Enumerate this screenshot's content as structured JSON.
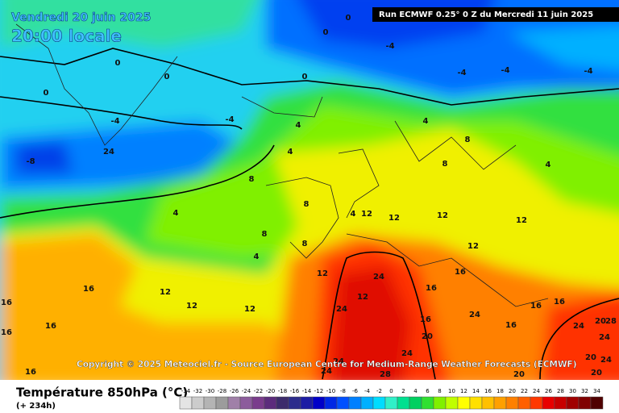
{
  "header": {
    "date": "Vendredi 20 juin 2025",
    "time": "20:00 locale",
    "run": "Run ECMWF 0.25° 0 Z du Mercredi 11 juin 2025"
  },
  "copyright": "Copyright © 2025 Meteociel.fr - Source European Centre for Medium-Range Weather Forecasts (ECMWF)",
  "footer": {
    "title": "Température 850hPa (°C)",
    "lead": "(+ 234h)"
  },
  "legend": {
    "labels": [
      -34,
      -32,
      -30,
      -28,
      -26,
      -24,
      -22,
      -20,
      -18,
      -16,
      -14,
      -12,
      -10,
      -8,
      -6,
      -4,
      -2,
      0,
      2,
      4,
      6,
      8,
      10,
      12,
      14,
      16,
      18,
      20,
      22,
      24,
      26,
      28,
      30,
      32,
      34
    ],
    "colors": [
      "#e4e4e4",
      "#cccccc",
      "#b4b4b4",
      "#9c9c9c",
      "#a080a8",
      "#8c5c9c",
      "#7a3c8c",
      "#5c2c7c",
      "#3c2c6c",
      "#2c2c8c",
      "#1c1ca4",
      "#0000c8",
      "#0028e4",
      "#0050ff",
      "#0080ff",
      "#00b0ff",
      "#00dcff",
      "#30f0c8",
      "#00e090",
      "#00d060",
      "#30e030",
      "#80f000",
      "#c0ff00",
      "#ffff00",
      "#ffe000",
      "#ffc000",
      "#ffa000",
      "#ff8000",
      "#ff6000",
      "#ff3800",
      "#e80000",
      "#c80000",
      "#a00000",
      "#800000",
      "#500000"
    ]
  },
  "contour_labels": [
    0,
    0,
    0,
    0,
    0,
    0,
    -4,
    -4,
    -4,
    -4,
    -4,
    -4,
    -8,
    4,
    4,
    4,
    8,
    8,
    4,
    8,
    8,
    4,
    8,
    4,
    4,
    12,
    12,
    12,
    12,
    8,
    12,
    12,
    12,
    24,
    16,
    16,
    12,
    12,
    12,
    16,
    16,
    24,
    24,
    16,
    20,
    24,
    16,
    16,
    16,
    16,
    16,
    24,
    20,
    28,
    24,
    20,
    24,
    24,
    24,
    24,
    28,
    20,
    20,
    16
  ]
}
